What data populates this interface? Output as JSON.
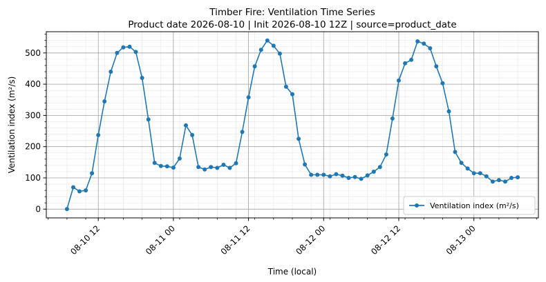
{
  "chart_data": {
    "type": "line",
    "title": "Timber Fire: Ventilation Time Series",
    "subtitle": "Product date 2026-08-10 | Init 2026-08-10 12Z | source=product_date",
    "xlabel": "Time (local)",
    "ylabel": "Ventilation index (m²/s)",
    "x_start": "2026-08-10 07:00",
    "x_step_hours": 1,
    "xlim_hours_from_start": [
      -3.3,
      75.3
    ],
    "x_major_ticks": [
      {
        "label": "08-10 12",
        "hours_from_start": 5
      },
      {
        "label": "08-11 00",
        "hours_from_start": 17
      },
      {
        "label": "08-11 12",
        "hours_from_start": 29
      },
      {
        "label": "08-12 00",
        "hours_from_start": 41
      },
      {
        "label": "08-12 12",
        "hours_from_start": 53
      },
      {
        "label": "08-13 00",
        "hours_from_start": 65
      }
    ],
    "ylim": [
      -28,
      568
    ],
    "yticks": [
      0,
      100,
      200,
      300,
      400,
      500
    ],
    "grid": true,
    "legend_position": "bottom-right",
    "color": "#1f77b4",
    "series": [
      {
        "name": "Ventilation index (m²/s)",
        "values": [
          0,
          70,
          57,
          60,
          115,
          237,
          345,
          440,
          500,
          518,
          520,
          503,
          420,
          287,
          148,
          138,
          137,
          133,
          162,
          268,
          237,
          135,
          127,
          135,
          132,
          142,
          132,
          147,
          247,
          358,
          457,
          510,
          540,
          523,
          498,
          392,
          368,
          225,
          143,
          110,
          110,
          110,
          105,
          112,
          107,
          100,
          103,
          97,
          108,
          120,
          135,
          175,
          290,
          412,
          467,
          478,
          537,
          530,
          515,
          457,
          403,
          313,
          183,
          148,
          130,
          115,
          115,
          105,
          88,
          93,
          88,
          100,
          102
        ]
      }
    ]
  }
}
